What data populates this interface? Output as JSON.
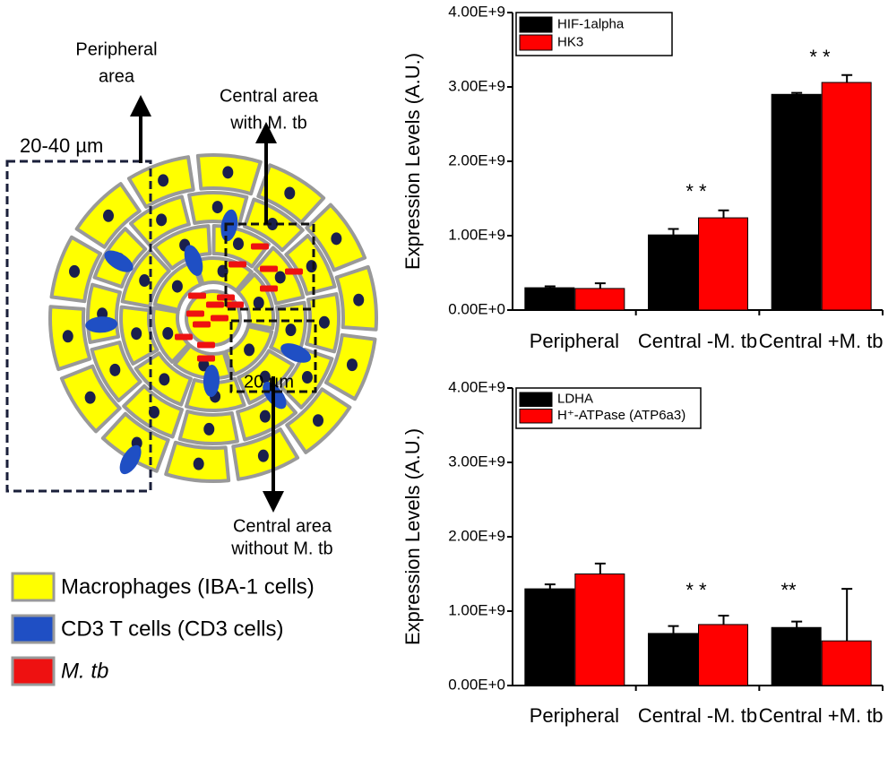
{
  "diagram": {
    "peripheral_label": [
      "Peripheral",
      "area"
    ],
    "central_with_label": [
      "Central area",
      "with M. tb"
    ],
    "central_without_label": [
      "Central area",
      "without M. tb"
    ],
    "scale_outer": "20-40 µm",
    "scale_inner": "20 µm",
    "legend": [
      {
        "label": "Macrophages (IBA-1 cells)",
        "color": "#ffff00"
      },
      {
        "label": "CD3 T cells (CD3 cells)",
        "color": "#1f4fc4"
      },
      {
        "label": "M. tb",
        "color": "#ee1111"
      }
    ]
  },
  "chart_data": [
    {
      "type": "bar",
      "ylabel": "Expression Levels (A.U.)",
      "categories": [
        "Peripheral",
        "Central -M. tb",
        "Central +M. tb"
      ],
      "series": [
        {
          "name": "HIF-1alpha",
          "color": "#000000",
          "values": [
            300000000,
            1010000000,
            2900000000
          ],
          "errors": [
            20000000,
            80000000,
            20000000
          ]
        },
        {
          "name": "HK3",
          "color": "#ff0000",
          "values": [
            290000000,
            1240000000,
            3060000000
          ],
          "errors": [
            70000000,
            100000000,
            100000000
          ]
        }
      ],
      "ylim": [
        0,
        4000000000
      ],
      "yticks": [
        {
          "value": 0,
          "label": "0.00E+0"
        },
        {
          "value": 1000000000,
          "label": "1.00E+9"
        },
        {
          "value": 2000000000,
          "label": "2.00E+9"
        },
        {
          "value": 3000000000,
          "label": "3.00E+9"
        },
        {
          "value": 4000000000,
          "label": "4.00E+9"
        }
      ],
      "annotations": [
        "* *",
        "* *"
      ]
    },
    {
      "type": "bar",
      "ylabel": "Expression Levels (A.U.)",
      "categories": [
        "Peripheral",
        "Central -M. tb",
        "Central +M. tb"
      ],
      "series": [
        {
          "name": "LDHA",
          "color": "#000000",
          "values": [
            1300000000,
            700000000,
            780000000
          ],
          "errors": [
            60000000,
            100000000,
            80000000
          ]
        },
        {
          "name": "H⁺-ATPase (ATP6a3)",
          "color": "#ff0000",
          "values": [
            1500000000,
            820000000,
            600000000
          ],
          "errors": [
            140000000,
            120000000,
            700000000
          ]
        }
      ],
      "ylim": [
        0,
        4000000000
      ],
      "yticks": [
        {
          "value": 0,
          "label": "0.00E+0"
        },
        {
          "value": 1000000000,
          "label": "1.00E+9"
        },
        {
          "value": 2000000000,
          "label": "2.00E+9"
        },
        {
          "value": 3000000000,
          "label": "3.00E+9"
        },
        {
          "value": 4000000000,
          "label": "4.00E+9"
        }
      ],
      "annotations": [
        "* *",
        "**"
      ]
    }
  ]
}
